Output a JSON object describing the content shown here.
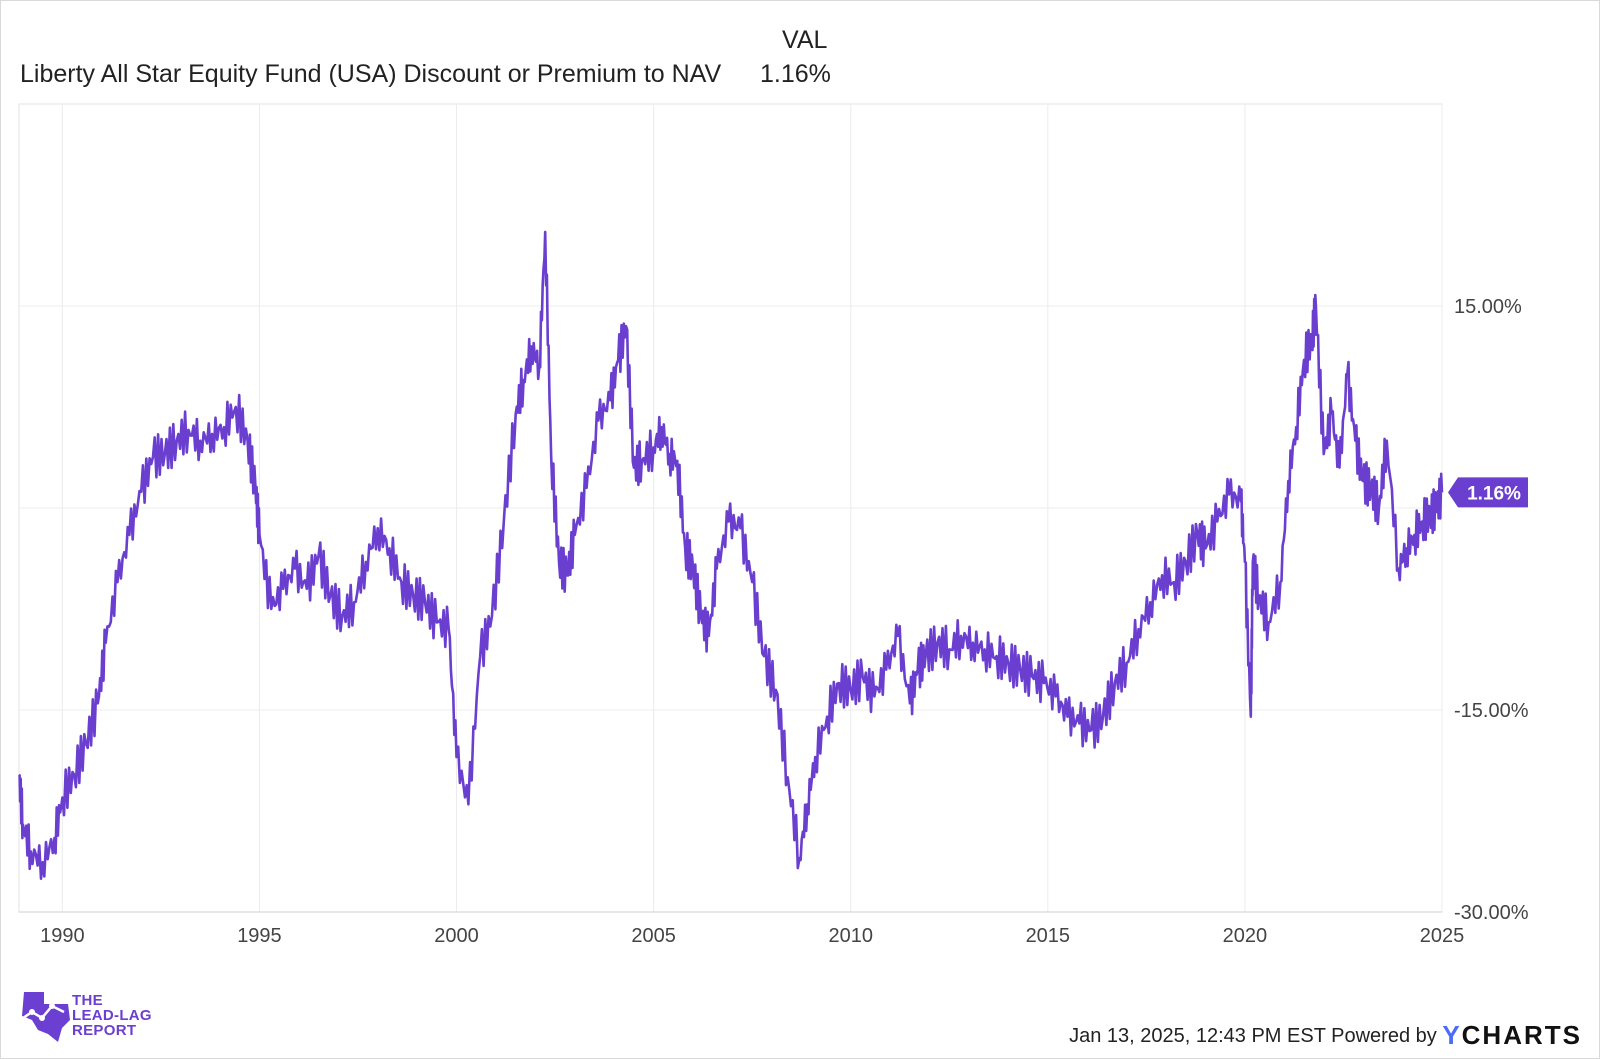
{
  "chart_data": {
    "type": "line",
    "title": "Liberty All Star Equity Fund (USA) Discount or Premium to NAV",
    "legend_header": "VAL",
    "series": [
      {
        "name": "Liberty All Star Equity Fund (USA) Discount or Premium to NAV",
        "last_value_label": "1.16%",
        "color": "#6a3fd0",
        "x": [
          1988.9,
          1989.0,
          1989.2,
          1989.5,
          1989.8,
          1990.0,
          1990.3,
          1990.6,
          1990.9,
          1991.1,
          1991.4,
          1991.7,
          1992.0,
          1992.3,
          1992.6,
          1992.9,
          1993.2,
          1993.5,
          1993.8,
          1994.1,
          1994.4,
          1994.7,
          1994.9,
          1995.0,
          1995.3,
          1995.6,
          1995.9,
          1996.2,
          1996.5,
          1996.8,
          1997.1,
          1997.4,
          1997.7,
          1998.0,
          1998.3,
          1998.6,
          1998.9,
          1999.2,
          1999.5,
          1999.8,
          2000.0,
          2000.3,
          2000.6,
          2000.9,
          2001.2,
          2001.5,
          2001.7,
          2001.9,
          2002.1,
          2002.25,
          2002.4,
          2002.6,
          2002.8,
          2003.0,
          2003.3,
          2003.6,
          2003.9,
          2004.1,
          2004.3,
          2004.5,
          2004.7,
          2005.0,
          2005.2,
          2005.4,
          2005.6,
          2005.8,
          2006.0,
          2006.2,
          2006.4,
          2006.6,
          2006.9,
          2007.2,
          2007.5,
          2007.8,
          2008.1,
          2008.4,
          2008.7,
          2008.9,
          2009.1,
          2009.4,
          2009.7,
          2010.0,
          2010.3,
          2010.6,
          2010.9,
          2011.2,
          2011.5,
          2011.7,
          2011.9,
          2012.2,
          2012.5,
          2012.8,
          2013.1,
          2013.4,
          2013.7,
          2014.0,
          2014.3,
          2014.6,
          2014.9,
          2015.2,
          2015.5,
          2015.8,
          2016.1,
          2016.4,
          2016.7,
          2017.0,
          2017.3,
          2017.6,
          2017.9,
          2018.2,
          2018.5,
          2018.8,
          2019.0,
          2019.3,
          2019.6,
          2019.9,
          2020.0,
          2020.15,
          2020.2,
          2020.35,
          2020.6,
          2020.9,
          2021.1,
          2021.3,
          2021.5,
          2021.7,
          2021.8,
          2022.0,
          2022.2,
          2022.4,
          2022.6,
          2022.8,
          2023.0,
          2023.2,
          2023.4,
          2023.6,
          2023.9,
          2024.1,
          2024.3,
          2024.5,
          2024.7,
          2024.85,
          2025.0
        ],
        "y": [
          -19.8,
          -23.5,
          -25.5,
          -26.3,
          -24.5,
          -21.5,
          -19.8,
          -17.5,
          -14.5,
          -10.0,
          -5.5,
          -2.0,
          1.2,
          3.8,
          4.0,
          5.0,
          5.8,
          5.0,
          5.5,
          6.0,
          7.5,
          5.0,
          1.5,
          -2.0,
          -7.5,
          -6.0,
          -4.5,
          -6.0,
          -3.5,
          -6.5,
          -8.0,
          -7.0,
          -4.0,
          -1.5,
          -3.0,
          -5.5,
          -6.5,
          -7.0,
          -8.5,
          -9.0,
          -18.5,
          -22.0,
          -11.0,
          -8.0,
          -1.0,
          7.0,
          9.5,
          12.0,
          10.5,
          20.5,
          4.0,
          -4.0,
          -5.0,
          -2.0,
          1.5,
          6.5,
          8.0,
          11.0,
          13.5,
          3.0,
          3.5,
          4.5,
          6.0,
          4.0,
          3.5,
          -3.0,
          -4.5,
          -8.0,
          -9.5,
          -4.5,
          -1.0,
          -1.5,
          -5.5,
          -11.0,
          -13.5,
          -20.0,
          -26.0,
          -22.0,
          -18.5,
          -15.5,
          -13.0,
          -13.5,
          -12.5,
          -14.0,
          -12.0,
          -9.5,
          -14.5,
          -12.0,
          -11.0,
          -10.0,
          -10.5,
          -9.5,
          -10.0,
          -10.5,
          -11.0,
          -11.5,
          -12.0,
          -12.5,
          -13.0,
          -14.0,
          -15.5,
          -16.0,
          -16.5,
          -15.5,
          -13.0,
          -11.5,
          -9.0,
          -7.0,
          -5.0,
          -5.5,
          -4.0,
          -2.0,
          -3.0,
          -1.0,
          1.0,
          0.5,
          -4.0,
          -15.5,
          -4.0,
          -6.5,
          -8.5,
          -5.5,
          2.0,
          6.0,
          11.0,
          12.5,
          15.0,
          4.0,
          7.0,
          3.0,
          10.0,
          5.0,
          2.0,
          1.5,
          0.0,
          5.0,
          -4.5,
          -3.0,
          -2.0,
          -1.0,
          -0.5,
          0.0,
          1.16
        ]
      }
    ],
    "x_ticks": [
      "1990",
      "1995",
      "2000",
      "2005",
      "2010",
      "2015",
      "2020",
      "2025"
    ],
    "x_tick_values": [
      1990,
      1995,
      2000,
      2005,
      2010,
      2015,
      2020,
      2025
    ],
    "y_ticks": [
      "15.00%",
      "-15.00%",
      "-30.00%"
    ],
    "y_tick_values": [
      15,
      -15,
      -30
    ],
    "xlim": [
      1988.9,
      2025.0
    ],
    "ylim": [
      -30,
      30
    ],
    "grid": true,
    "xlabel": "",
    "ylabel": ""
  },
  "footer": {
    "timestamp": "Jan 13, 2025, 12:43 PM EST",
    "powered_by": "Powered by",
    "brand_y": "Y",
    "brand_rest": "CHARTS"
  },
  "logo": {
    "line1": "THE",
    "line2": "LEAD-LAG",
    "line3": "REPORT",
    "color": "#6b3fd1"
  }
}
